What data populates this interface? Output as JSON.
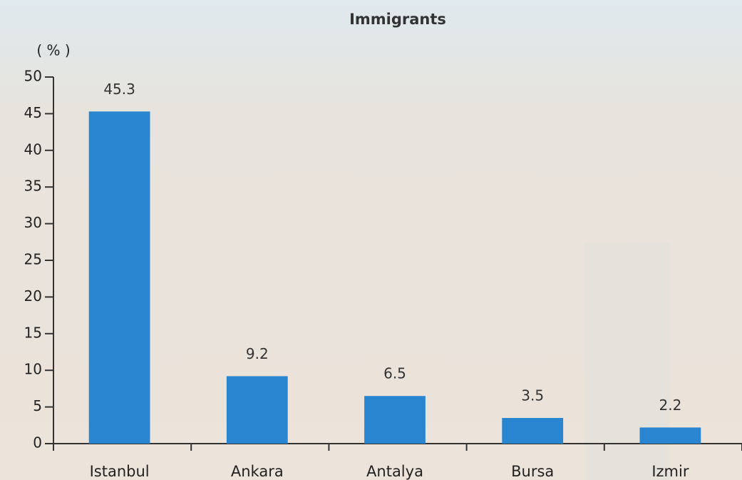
{
  "chart_data": {
    "type": "bar",
    "title": "Immigrants",
    "y_label": "( % )",
    "categories": [
      "Istanbul",
      "Ankara",
      "Antalya",
      "Bursa",
      "Izmir"
    ],
    "values": [
      45.3,
      9.2,
      6.5,
      3.5,
      2.2
    ],
    "color": "#2a85d0",
    "ylim": [
      0,
      50
    ],
    "yticks": [
      0,
      5,
      10,
      15,
      20,
      25,
      30,
      35,
      40,
      45,
      50
    ],
    "grid": false,
    "value_labels_shown": true
  }
}
